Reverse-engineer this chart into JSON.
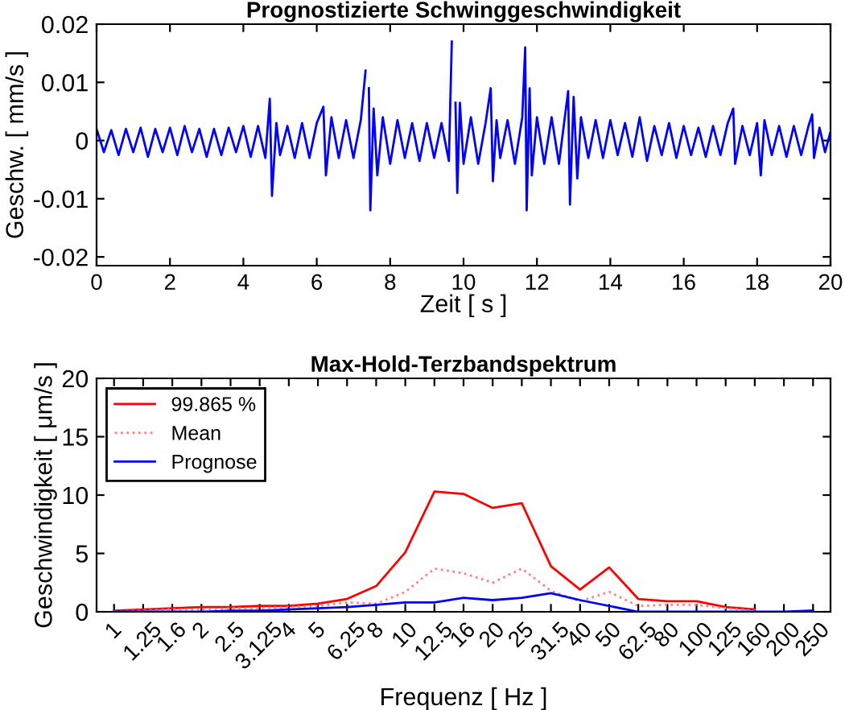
{
  "chart_data": [
    {
      "type": "line",
      "title": "Prognostizierte Schwinggeschwindigkeit",
      "xlabel": "Zeit [ s ]",
      "ylabel": "Geschw. [ mm/s ]",
      "xlim": [
        0,
        20
      ],
      "ylim": [
        -0.0215,
        0.02
      ],
      "xticks": [
        0,
        2,
        4,
        6,
        8,
        10,
        12,
        14,
        16,
        18,
        20
      ],
      "yticks": [
        {
          "value": -0.02,
          "label": "-0.02"
        },
        {
          "value": -0.01,
          "label": "-0.01"
        },
        0,
        0.01,
        0.02
      ],
      "grid": false,
      "legend": false,
      "series": [
        {
          "color": "#0000ff",
          "x": [
            0,
            0.2,
            0.4,
            0.6,
            0.8,
            1.0,
            1.2,
            1.4,
            1.6,
            1.8,
            2.0,
            2.2,
            2.4,
            2.6,
            2.8,
            3.0,
            3.2,
            3.4,
            3.6,
            3.8,
            4.0,
            4.2,
            4.4,
            4.6,
            4.72,
            4.78,
            4.9,
            5.0,
            5.2,
            5.4,
            5.6,
            5.8,
            6.0,
            6.18,
            6.25,
            6.4,
            6.6,
            6.8,
            7.0,
            7.2,
            7.33,
            7.37,
            7.42,
            7.46,
            7.55,
            7.65,
            7.8,
            8.0,
            8.2,
            8.4,
            8.6,
            8.8,
            9.0,
            9.2,
            9.4,
            9.6,
            9.68,
            9.72,
            9.78,
            9.83,
            9.9,
            10.0,
            10.2,
            10.4,
            10.6,
            10.74,
            10.8,
            10.9,
            11.0,
            11.2,
            11.4,
            11.6,
            11.68,
            11.72,
            11.8,
            11.86,
            12.0,
            12.2,
            12.4,
            12.6,
            12.85,
            12.9,
            13.0,
            13.1,
            13.2,
            13.4,
            13.6,
            13.8,
            14.0,
            14.2,
            14.4,
            14.6,
            14.8,
            15.0,
            15.2,
            15.4,
            15.6,
            15.8,
            16.0,
            16.2,
            16.4,
            16.6,
            16.8,
            17.0,
            17.2,
            17.35,
            17.4,
            17.6,
            17.8,
            18.0,
            18.1,
            18.2,
            18.4,
            18.6,
            18.8,
            19.0,
            19.2,
            19.4,
            19.5,
            19.55,
            19.7,
            19.85,
            20.0
          ],
          "values": [
            0.002,
            -0.002,
            0.0018,
            -0.0025,
            0.002,
            -0.002,
            0.0022,
            -0.0028,
            0.002,
            -0.002,
            0.0022,
            -0.0025,
            0.0025,
            -0.002,
            0.002,
            -0.0028,
            0.002,
            -0.0025,
            0.0022,
            -0.002,
            0.0025,
            -0.0028,
            0.0025,
            -0.003,
            0.0072,
            -0.0095,
            0.003,
            -0.0025,
            0.0025,
            -0.003,
            0.003,
            -0.003,
            0.003,
            0.0058,
            -0.006,
            0.004,
            -0.003,
            0.0035,
            -0.003,
            0.0035,
            0.012,
            null,
            0.009,
            -0.012,
            0.0055,
            -0.006,
            0.004,
            -0.004,
            0.0035,
            -0.003,
            0.003,
            -0.0035,
            0.003,
            -0.003,
            0.003,
            -0.0035,
            0.017,
            null,
            0.0065,
            -0.009,
            0.0065,
            -0.004,
            0.004,
            -0.004,
            0.003,
            0.009,
            -0.007,
            0.0035,
            -0.003,
            0.0035,
            -0.004,
            0.004,
            0.016,
            -0.012,
            0.009,
            -0.006,
            0.004,
            -0.004,
            0.004,
            -0.004,
            0.0085,
            -0.011,
            0.0075,
            -0.0065,
            0.004,
            -0.003,
            0.0035,
            -0.003,
            0.0035,
            -0.0025,
            0.003,
            -0.0028,
            0.004,
            -0.0035,
            0.0025,
            -0.0025,
            0.003,
            -0.003,
            0.0025,
            -0.0025,
            0.0022,
            -0.0028,
            0.0025,
            -0.0025,
            0.003,
            0.0055,
            -0.004,
            0.0025,
            -0.0025,
            0.003,
            -0.006,
            0.0035,
            -0.0025,
            0.0025,
            -0.0028,
            0.0025,
            -0.0025,
            0.0025,
            0.0045,
            -0.003,
            0.0022,
            -0.002,
            0.0015
          ]
        }
      ]
    },
    {
      "type": "line",
      "title": "Max-Hold-Terzbandspektrum",
      "xlabel": "Frequenz [ Hz ]",
      "ylabel": "Geschwindigkeit [ μm/s ]",
      "ylim": [
        0,
        20
      ],
      "yticks": [
        0,
        5,
        10,
        15,
        20
      ],
      "grid": false,
      "legend": "top left",
      "categories": [
        "1",
        "1.25",
        "1.6",
        "2",
        "2.5",
        "3.125",
        "4",
        "5",
        "6.25",
        "8",
        "10",
        "12.5",
        "16",
        "20",
        "25",
        "31.5",
        "40",
        "50",
        "62.5",
        "80",
        "100",
        "125",
        "160",
        "200",
        "250"
      ],
      "series": [
        {
          "name": "99.865 %",
          "color": "#ff0000",
          "line_style": "solid",
          "values": [
            0.1,
            0.2,
            0.3,
            0.4,
            0.4,
            0.5,
            0.5,
            0.7,
            1.1,
            2.2,
            5.1,
            10.3,
            10.1,
            8.9,
            9.3,
            3.9,
            1.9,
            3.8,
            1.1,
            0.9,
            0.9,
            0.4,
            0.2,
            null,
            null
          ]
        },
        {
          "name": "Mean",
          "color": "#ff8080",
          "line_style": "dotted",
          "values": [
            0,
            0.1,
            0.2,
            0.2,
            0.3,
            0.3,
            0.4,
            0.5,
            0.8,
            0.7,
            1.7,
            3.7,
            3.3,
            2.5,
            3.7,
            1.8,
            0.9,
            1.7,
            0.5,
            0.6,
            0.6,
            0.3,
            0.1,
            null,
            null
          ]
        },
        {
          "name": "Prognose",
          "color": "#0000ff",
          "line_style": "solid",
          "values": [
            0,
            0,
            0,
            0,
            0.1,
            0.1,
            0.2,
            0.3,
            0.4,
            0.6,
            0.8,
            0.8,
            1.2,
            1.0,
            1.2,
            1.6,
            1.0,
            0.5,
            0,
            0,
            0,
            0,
            0,
            0,
            0.1
          ]
        }
      ]
    }
  ]
}
